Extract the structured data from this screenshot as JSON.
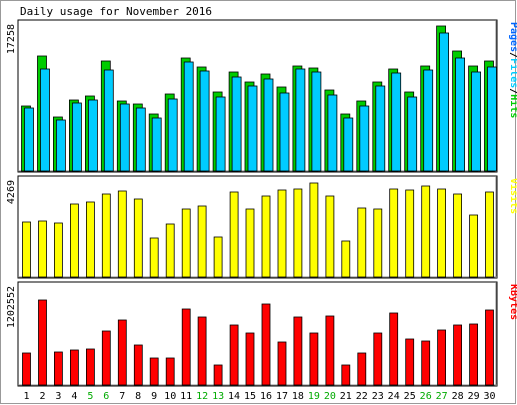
{
  "chart_data": {
    "type": "bar",
    "title": "Daily usage for November 2016",
    "categories": [
      "1",
      "2",
      "3",
      "4",
      "5",
      "6",
      "7",
      "8",
      "9",
      "10",
      "11",
      "12",
      "13",
      "14",
      "15",
      "16",
      "17",
      "18",
      "19",
      "20",
      "21",
      "22",
      "23",
      "24",
      "25",
      "26",
      "27",
      "28",
      "29",
      "30"
    ],
    "weekend_days": [
      "5",
      "6",
      "12",
      "13",
      "19",
      "20",
      "26",
      "27"
    ],
    "panels": [
      {
        "name": "top",
        "ylabel": "Pages/Files/Hits",
        "ytick": "17258",
        "ymax": 17258,
        "series": [
          {
            "name": "Hits",
            "color": "#00cc00",
            "values": [
              7600,
              13400,
              6300,
              8300,
              8800,
              12800,
              8200,
              7800,
              6600,
              9000,
              13200,
              12100,
              9200,
              11500,
              10400,
              11300,
              9800,
              12200,
              12000,
              9500,
              6600,
              8200,
              10400,
              11900,
              9200,
              12200,
              16900,
              14000,
              12300,
              12800
            ]
          },
          {
            "name": "Files",
            "color": "#00ccff",
            "values": [
              7300,
              11900,
              5900,
              7900,
              8300,
              11800,
              7800,
              7300,
              6200,
              8400,
              12700,
              11700,
              8600,
              11000,
              9900,
              10700,
              9100,
              11900,
              11500,
              8900,
              6200,
              7600,
              9900,
              11400,
              8600,
              11800,
              16100,
              13200,
              11600,
              12100
            ]
          }
        ]
      },
      {
        "name": "middle",
        "ylabel": "Visits",
        "ytick": "4269",
        "ymax": 4269,
        "series": [
          {
            "name": "Visits",
            "color": "#ffff00",
            "values": [
              2400,
              2450,
              2350,
              3200,
              3250,
              3600,
              3750,
              3400,
              1700,
              2300,
              2950,
              3100,
              1750,
              3700,
              2950,
              3550,
              3800,
              3850,
              4100,
              3550,
              1550,
              3000,
              2950,
              3850,
              3800,
              3950,
              3850,
              3600,
              2700,
              3700
            ]
          }
        ]
      },
      {
        "name": "bottom",
        "ylabel": "KBytes",
        "ytick": "1202552",
        "ymax": 1202552,
        "series": [
          {
            "name": "KBytes",
            "color": "#ff0000",
            "values": [
              390000,
              1020000,
              400000,
              420000,
              430000,
              650000,
              780000,
              480000,
              320000,
              330000,
              910000,
              820000,
              240000,
              720000,
              630000,
              980000,
              520000,
              820000,
              630000,
              830000,
              240000,
              380000,
              630000,
              870000,
              550000,
              530000,
              660000,
              720000,
              730000,
              900000
            ]
          }
        ]
      }
    ]
  }
}
